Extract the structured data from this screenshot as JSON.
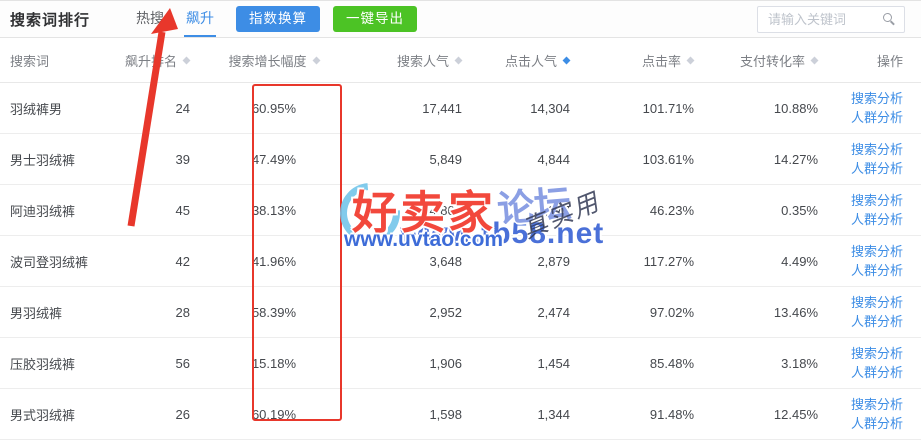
{
  "toolbar": {
    "title": "搜索词排行",
    "tabs": [
      {
        "label": "热搜",
        "active": false
      },
      {
        "label": "飙升",
        "active": true
      }
    ],
    "convert_button": "指数换算",
    "export_button": "一键导出",
    "search_placeholder": "请输入关键词"
  },
  "table": {
    "columns": [
      {
        "label": "搜索词",
        "sortable": false,
        "align": "left"
      },
      {
        "label": "飙升排名",
        "sortable": true,
        "align": "right"
      },
      {
        "label": "搜索增长幅度",
        "sortable": true,
        "align": "center"
      },
      {
        "label": "搜索人气",
        "sortable": true,
        "align": "right"
      },
      {
        "label": "点击人气",
        "sortable": true,
        "align": "right",
        "sort_active": true
      },
      {
        "label": "点击率",
        "sortable": true,
        "align": "right"
      },
      {
        "label": "支付转化率",
        "sortable": true,
        "align": "right"
      },
      {
        "label": "操作",
        "sortable": false,
        "align": "right"
      }
    ],
    "action_labels": [
      "搜索分析",
      "人群分析"
    ],
    "rows": [
      {
        "keyword": "羽绒裤男",
        "rank": "24",
        "growth": "60.95%",
        "search_popularity": "17,441",
        "click_popularity": "14,304",
        "click_rate": "101.71%",
        "pay_conversion": "10.88%"
      },
      {
        "keyword": "男士羽绒裤",
        "rank": "39",
        "growth": "47.49%",
        "search_popularity": "5,849",
        "click_popularity": "4,844",
        "click_rate": "103.61%",
        "pay_conversion": "14.27%"
      },
      {
        "keyword": "阿迪羽绒裤",
        "rank": "45",
        "growth": "38.13%",
        "search_popularity": "4,801",
        "click_popularity": "3,377",
        "click_rate": "46.23%",
        "pay_conversion": "0.35%"
      },
      {
        "keyword": "波司登羽绒裤",
        "rank": "42",
        "growth": "41.96%",
        "search_popularity": "3,648",
        "click_popularity": "2,879",
        "click_rate": "117.27%",
        "pay_conversion": "4.49%"
      },
      {
        "keyword": "男羽绒裤",
        "rank": "28",
        "growth": "58.39%",
        "search_popularity": "2,952",
        "click_popularity": "2,474",
        "click_rate": "97.02%",
        "pay_conversion": "13.46%"
      },
      {
        "keyword": "压胶羽绒裤",
        "rank": "56",
        "growth": "15.18%",
        "search_popularity": "1,906",
        "click_popularity": "1,454",
        "click_rate": "85.48%",
        "pay_conversion": "3.18%"
      },
      {
        "keyword": "男式羽绒裤",
        "rank": "26",
        "growth": "60.19%",
        "search_popularity": "1,598",
        "click_popularity": "1,344",
        "click_rate": "91.48%",
        "pay_conversion": "12.45%"
      }
    ]
  },
  "watermark": {
    "brand_main": "好卖家",
    "brand_suffix": "论坛",
    "url_primary": "www.tb58.net",
    "url_secondary": "www.uvtao.com",
    "stamp": "真实用"
  },
  "colors": {
    "accent_blue": "#3d8de5",
    "button_green": "#4cc325",
    "annotation_red": "#e8372b"
  }
}
